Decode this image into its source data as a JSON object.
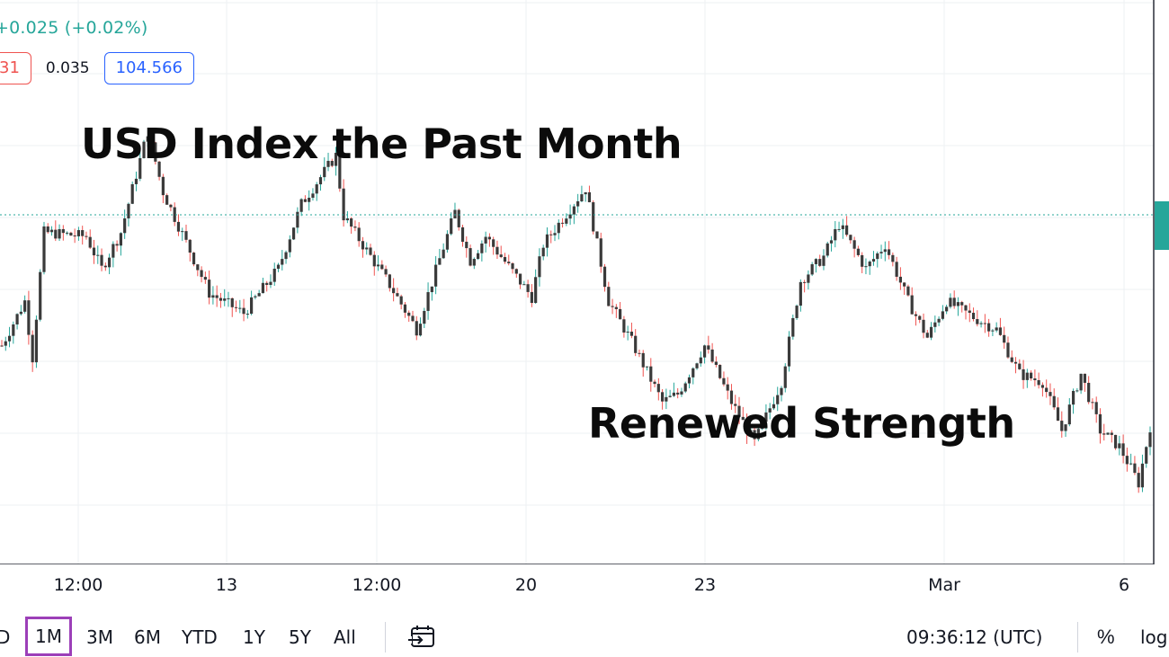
{
  "legend": {
    "change": "+0.025 (+0.02%)",
    "values": [
      "31",
      "0.035",
      "104.566"
    ]
  },
  "overlay": {
    "title": "USD Index the Past Month",
    "subtitle": "Renewed Strength"
  },
  "chart_data": {
    "type": "candlestick",
    "title": "USD Index the Past Month",
    "annotation": "Renewed Strength",
    "x_ticks": [
      "12:00",
      "13",
      "12:00",
      "20",
      "23",
      "Mar",
      "6"
    ],
    "last_price": 104.566,
    "grid": true,
    "price_line": true,
    "colors": {
      "up": "#26a69a",
      "down": "#ef5350",
      "candle_body": "#3a3a3a",
      "price_line": "#26a69a"
    },
    "close_path": [
      {
        "i": 0,
        "v": 0.39
      },
      {
        "i": 6,
        "v": 0.5
      },
      {
        "i": 8,
        "v": 0.36
      },
      {
        "i": 11,
        "v": 0.67
      },
      {
        "i": 22,
        "v": 0.66
      },
      {
        "i": 26,
        "v": 0.58
      },
      {
        "i": 31,
        "v": 0.67
      },
      {
        "i": 38,
        "v": 0.92
      },
      {
        "i": 42,
        "v": 0.77
      },
      {
        "i": 54,
        "v": 0.52
      },
      {
        "i": 63,
        "v": 0.47
      },
      {
        "i": 72,
        "v": 0.58
      },
      {
        "i": 78,
        "v": 0.74
      },
      {
        "i": 87,
        "v": 0.86
      },
      {
        "i": 89,
        "v": 0.71
      },
      {
        "i": 101,
        "v": 0.54
      },
      {
        "i": 108,
        "v": 0.43
      },
      {
        "i": 118,
        "v": 0.72
      },
      {
        "i": 122,
        "v": 0.6
      },
      {
        "i": 126,
        "v": 0.66
      },
      {
        "i": 138,
        "v": 0.51
      },
      {
        "i": 141,
        "v": 0.64
      },
      {
        "i": 152,
        "v": 0.78
      },
      {
        "i": 158,
        "v": 0.5
      },
      {
        "i": 164,
        "v": 0.4
      },
      {
        "i": 172,
        "v": 0.25
      },
      {
        "i": 176,
        "v": 0.27
      },
      {
        "i": 183,
        "v": 0.39
      },
      {
        "i": 190,
        "v": 0.25
      },
      {
        "i": 196,
        "v": 0.15
      },
      {
        "i": 203,
        "v": 0.3
      },
      {
        "i": 208,
        "v": 0.55
      },
      {
        "i": 214,
        "v": 0.61
      },
      {
        "i": 218,
        "v": 0.69
      },
      {
        "i": 225,
        "v": 0.58
      },
      {
        "i": 230,
        "v": 0.64
      },
      {
        "i": 236,
        "v": 0.5
      },
      {
        "i": 241,
        "v": 0.41
      },
      {
        "i": 246,
        "v": 0.5
      },
      {
        "i": 253,
        "v": 0.46
      },
      {
        "i": 259,
        "v": 0.43
      },
      {
        "i": 265,
        "v": 0.32
      },
      {
        "i": 271,
        "v": 0.3
      },
      {
        "i": 276,
        "v": 0.18
      },
      {
        "i": 281,
        "v": 0.32
      },
      {
        "i": 286,
        "v": 0.18
      },
      {
        "i": 291,
        "v": 0.14
      },
      {
        "i": 296,
        "v": 0.05
      },
      {
        "i": 299,
        "v": 0.19
      }
    ],
    "n_candles": 300
  },
  "bottom_bar": {
    "ranges": [
      "D",
      "1M",
      "3M",
      "6M",
      "YTD",
      "1Y",
      "5Y",
      "All"
    ],
    "active_range": "1M",
    "time": "09:36:12 (UTC)",
    "percent_label": "%",
    "log_label": "log"
  },
  "icons": {
    "compare": "calendar-arrow-icon"
  }
}
